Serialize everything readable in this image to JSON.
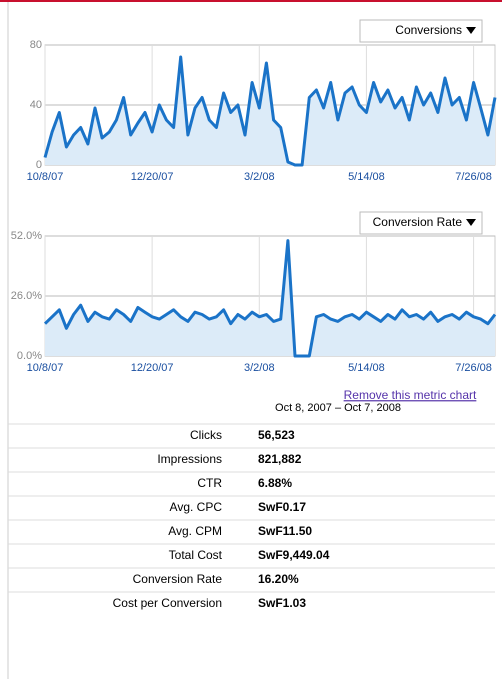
{
  "chart_data": [
    {
      "type": "line",
      "dropdown": "Conversions",
      "categories": [
        "10/8/07",
        null,
        null,
        null,
        null,
        null,
        null,
        null,
        null,
        null,
        null,
        null,
        null,
        null,
        null,
        "12/20/07",
        null,
        null,
        null,
        null,
        null,
        null,
        null,
        null,
        null,
        null,
        null,
        null,
        null,
        null,
        "3/2/08",
        null,
        null,
        null,
        null,
        null,
        null,
        null,
        null,
        null,
        null,
        null,
        null,
        null,
        null,
        "5/14/08",
        null,
        null,
        null,
        null,
        null,
        null,
        null,
        null,
        null,
        null,
        null,
        null,
        null,
        null,
        "7/26/08",
        null,
        null,
        null
      ],
      "series": [
        {
          "name": "Conversions",
          "color": "#1a73c8",
          "values": [
            5,
            22,
            35,
            12,
            20,
            25,
            14,
            38,
            18,
            22,
            30,
            45,
            20,
            28,
            35,
            22,
            40,
            30,
            25,
            72,
            20,
            38,
            45,
            30,
            25,
            48,
            35,
            40,
            20,
            55,
            38,
            68,
            30,
            25,
            2,
            0,
            0,
            45,
            50,
            38,
            55,
            30,
            48,
            52,
            40,
            35,
            55,
            42,
            50,
            38,
            45,
            30,
            52,
            40,
            48,
            35,
            58,
            40,
            45,
            30,
            55,
            38,
            20,
            45
          ]
        }
      ],
      "ylim": [
        0,
        80
      ],
      "yticks": [
        0,
        40,
        80
      ],
      "grid": true
    },
    {
      "type": "line",
      "dropdown": "Conversion Rate",
      "categories": [
        "10/8/07",
        null,
        null,
        null,
        null,
        null,
        null,
        null,
        null,
        null,
        null,
        null,
        null,
        null,
        null,
        "12/20/07",
        null,
        null,
        null,
        null,
        null,
        null,
        null,
        null,
        null,
        null,
        null,
        null,
        null,
        null,
        "3/2/08",
        null,
        null,
        null,
        null,
        null,
        null,
        null,
        null,
        null,
        null,
        null,
        null,
        null,
        null,
        "5/14/08",
        null,
        null,
        null,
        null,
        null,
        null,
        null,
        null,
        null,
        null,
        null,
        null,
        null,
        null,
        "7/26/08",
        null,
        null,
        null
      ],
      "series": [
        {
          "name": "Conversion Rate",
          "color": "#1a73c8",
          "values": [
            14,
            17,
            20,
            12,
            18,
            22,
            15,
            19,
            17,
            16,
            20,
            18,
            15,
            21,
            19,
            17,
            16,
            18,
            20,
            17,
            15,
            19,
            18,
            16,
            17,
            20,
            14,
            18,
            16,
            19,
            17,
            18,
            15,
            16,
            50,
            0,
            0,
            0,
            17,
            18,
            16,
            15,
            17,
            18,
            16,
            19,
            17,
            15,
            18,
            16,
            20,
            17,
            18,
            16,
            19,
            15,
            17,
            18,
            16,
            19,
            17,
            16,
            14,
            18
          ]
        }
      ],
      "ylim": [
        0,
        52
      ],
      "yticks": [
        {
          "value": 0,
          "label": "0.0%"
        },
        {
          "value": 26,
          "label": "26.0%"
        },
        {
          "value": 52,
          "label": "52.0%"
        }
      ],
      "grid": true
    }
  ],
  "link": "Remove this metric chart",
  "table": {
    "date_range": "Oct 8, 2007 – Oct 7, 2008",
    "rows": [
      [
        "Clicks",
        "56,523"
      ],
      [
        "Impressions",
        "821,882"
      ],
      [
        "CTR",
        "6.88%"
      ],
      [
        "Avg. CPC",
        "SwF0.17"
      ],
      [
        "Avg. CPM",
        "SwF11.50"
      ],
      [
        "Total Cost",
        "SwF9,449.04"
      ],
      [
        "Conversion Rate",
        "16.20%"
      ],
      [
        "Cost per Conversion",
        "SwF1.03"
      ]
    ]
  }
}
